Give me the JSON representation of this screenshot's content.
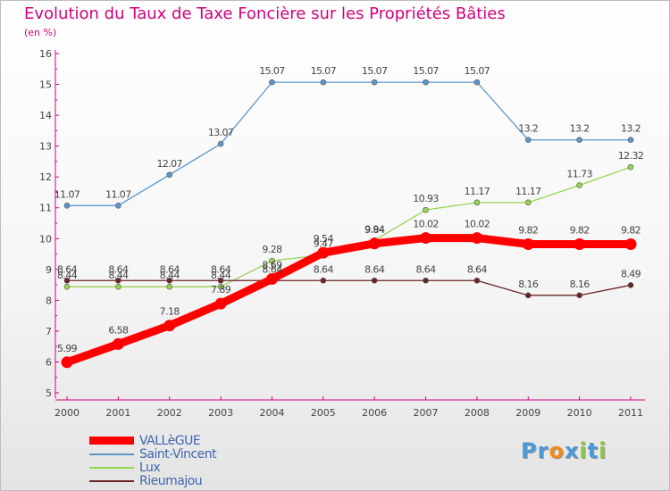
{
  "title": "Evolution du Taux de Taxe Foncière sur les Propriétés Bâties",
  "subtitle": "(en %)",
  "logo": {
    "text": "Proxiti",
    "letters": [
      {
        "ch": "P",
        "color": "#4a9ad8"
      },
      {
        "ch": "r",
        "color": "#4a9ad8"
      },
      {
        "ch": "o",
        "color": "#f08a1c"
      },
      {
        "ch": "x",
        "color": "#4a9ad8"
      },
      {
        "ch": "i",
        "color": "#8dc63f"
      },
      {
        "ch": "t",
        "color": "#4a9ad8"
      },
      {
        "ch": "i",
        "color": "#8dc63f"
      }
    ]
  },
  "chart_data": {
    "type": "line",
    "title": "Evolution du Taux de Taxe Foncière sur les Propriétés Bâties",
    "subtitle": "(en %)",
    "xlabel": "",
    "ylabel": "",
    "categories": [
      "2000",
      "2001",
      "2002",
      "2003",
      "2004",
      "2005",
      "2006",
      "2007",
      "2008",
      "2009",
      "2010",
      "2011"
    ],
    "ylim": [
      5,
      16
    ],
    "yticks": [
      "5",
      "6",
      "7",
      "8",
      "9",
      "10",
      "11",
      "12",
      "13",
      "14",
      "15",
      "16"
    ],
    "grid": false,
    "legend_position": "bottom-left",
    "series": [
      {
        "name": "VALLèGUE",
        "color": "#ff0000",
        "emphasis": "thick",
        "values": [
          5.99,
          6.58,
          7.18,
          7.89,
          8.69,
          9.54,
          9.84,
          10.02,
          10.02,
          9.82,
          9.82,
          9.82
        ],
        "labels": [
          "5.99",
          "6.58",
          "7.18",
          "7.89",
          "8.69",
          "9.54",
          "9.84",
          "10.02",
          "10.02",
          "9.82",
          "9.82",
          "9.82"
        ]
      },
      {
        "name": "Saint-Vincent",
        "color": "#5b97cc",
        "emphasis": "normal",
        "values": [
          11.07,
          11.07,
          12.07,
          13.07,
          15.07,
          15.07,
          15.07,
          15.07,
          15.07,
          13.2,
          13.2,
          13.2
        ],
        "labels": [
          "11.07",
          "11.07",
          "12.07",
          "13.07",
          "15.07",
          "15.07",
          "15.07",
          "15.07",
          "15.07",
          "13.2",
          "13.2",
          "13.2"
        ]
      },
      {
        "name": "Lux",
        "color": "#98d452",
        "emphasis": "normal",
        "values": [
          8.44,
          8.44,
          8.44,
          8.44,
          9.28,
          9.47,
          9.94,
          10.93,
          11.17,
          11.17,
          11.73,
          12.32
        ],
        "labels": [
          "8.44",
          "8.44",
          "8.44",
          "8.44",
          "9.28",
          "9.47",
          "9.94",
          "10.93",
          "11.17",
          "11.17",
          "11.73",
          "12.32"
        ]
      },
      {
        "name": "Rieumajou",
        "color": "#6b2424",
        "emphasis": "normal",
        "values": [
          8.64,
          8.64,
          8.64,
          8.64,
          8.64,
          8.64,
          8.64,
          8.64,
          8.64,
          8.16,
          8.16,
          8.49
        ],
        "labels": [
          "8.64",
          "8.64",
          "8.64",
          "8.64",
          "8.64",
          "8.64",
          "8.64",
          "8.64",
          "8.64",
          "8.16",
          "8.16",
          "8.49"
        ]
      }
    ]
  }
}
